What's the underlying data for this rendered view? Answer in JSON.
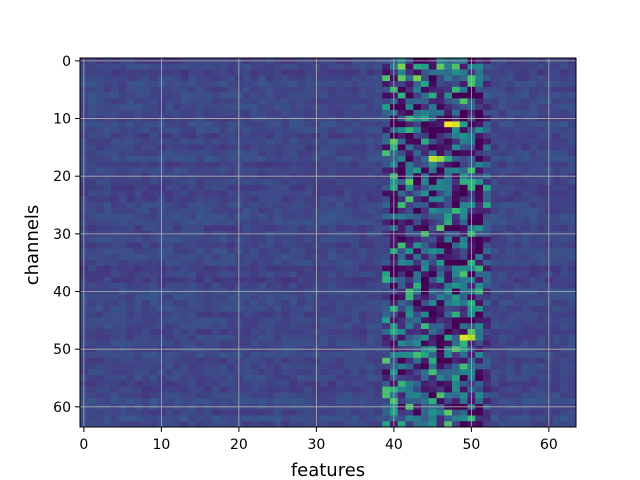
{
  "chart_data": {
    "type": "heatmap",
    "title": "",
    "xlabel": "features",
    "ylabel": "channels",
    "xlim": [
      -0.5,
      63.5
    ],
    "ylim": [
      63.5,
      -0.5
    ],
    "y_inverted": true,
    "grid": true,
    "colormap": "viridis",
    "n_rows": 64,
    "n_cols": 64,
    "xticks": [
      0,
      10,
      20,
      30,
      40,
      50,
      60
    ],
    "yticks": [
      0,
      10,
      20,
      30,
      40,
      50,
      60
    ],
    "xtick_labels": [
      "0",
      "10",
      "20",
      "30",
      "40",
      "50",
      "60"
    ],
    "ytick_labels": [
      "0",
      "10",
      "20",
      "30",
      "40",
      "50",
      "60"
    ],
    "value_range": [
      0,
      1
    ],
    "background_level": 0.22,
    "left_region_level_range": [
      0.17,
      0.3
    ],
    "active_band_columns": [
      39,
      52
    ],
    "active_band_level_range": [
      0.0,
      1.0
    ],
    "hotspots": [
      {
        "row": 1,
        "col": 41,
        "value": 0.8
      },
      {
        "row": 1,
        "col": 46,
        "value": 0.75
      },
      {
        "row": 3,
        "col": 43,
        "value": 0.8
      },
      {
        "row": 11,
        "col": 47,
        "value": 1.0
      },
      {
        "row": 11,
        "col": 48,
        "value": 0.95
      },
      {
        "row": 17,
        "col": 45,
        "value": 0.92
      },
      {
        "row": 17,
        "col": 46,
        "value": 0.85
      },
      {
        "row": 21,
        "col": 42,
        "value": 0.75
      },
      {
        "row": 24,
        "col": 42,
        "value": 0.72
      },
      {
        "row": 48,
        "col": 49,
        "value": 0.95
      },
      {
        "row": 48,
        "col": 50,
        "value": 0.88
      },
      {
        "row": 50,
        "col": 48,
        "value": 0.72
      }
    ],
    "darkspots": [
      {
        "row": 8,
        "col": 46,
        "value": 0.02
      },
      {
        "row": 38,
        "col": 44,
        "value": 0.0
      },
      {
        "row": 43,
        "col": 45,
        "value": 0.02
      },
      {
        "row": 60,
        "col": 47,
        "value": 0.03
      }
    ]
  }
}
